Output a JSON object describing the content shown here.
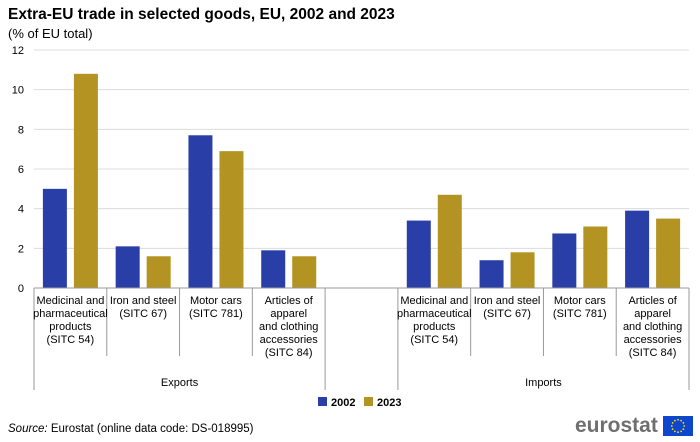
{
  "header": {
    "title": "Extra-EU trade in selected goods, EU, 2002 and 2023",
    "subtitle": "(% of EU total)"
  },
  "footer": {
    "source_label": "Source:",
    "source_text": " Eurostat (online data code: DS-018995)",
    "logo_text": "eurostat"
  },
  "colors": {
    "s2002": "#2a3ea8",
    "s2023": "#b39321",
    "grid": "#dcdcdc",
    "axis": "#999999",
    "eu_flag": "#0e47cb",
    "eu_stars": "#ffdd00",
    "logo_text": "#6f6f6f"
  },
  "chart_data": {
    "type": "bar",
    "title": "Extra-EU trade in selected goods, EU, 2002 and 2023",
    "subtitle": "(% of EU total)",
    "ylim": [
      0,
      12
    ],
    "yticks": [
      0,
      2,
      4,
      6,
      8,
      10,
      12
    ],
    "grid": true,
    "legend_position": "bottom",
    "groups": [
      {
        "name": "Exports",
        "categories": [
          [
            "Medicinal and",
            "pharmaceutical",
            "products",
            "(SITC 54)"
          ],
          [
            "Iron and steel",
            "(SITC 67)"
          ],
          [
            "Motor cars",
            "(SITC 781)"
          ],
          [
            "Articles of",
            "apparel",
            "and clothing",
            "accessories",
            "(SITC 84)"
          ]
        ]
      },
      {
        "name": "Imports",
        "categories": [
          [
            "Medicinal and",
            "pharmaceutical",
            "products",
            "(SITC 54)"
          ],
          [
            "Iron and steel",
            "(SITC 67)"
          ],
          [
            "Motor cars",
            "(SITC 781)"
          ],
          [
            "Articles of",
            "apparel",
            "and clothing",
            "accessories",
            "(SITC 84)"
          ]
        ]
      }
    ],
    "series": [
      {
        "name": "2002",
        "values": [
          5.0,
          2.1,
          7.7,
          1.9,
          null,
          3.4,
          1.4,
          2.75,
          3.9
        ]
      },
      {
        "name": "2023",
        "values": [
          10.8,
          1.6,
          6.9,
          1.6,
          null,
          4.7,
          1.8,
          3.1,
          3.5
        ]
      }
    ]
  }
}
